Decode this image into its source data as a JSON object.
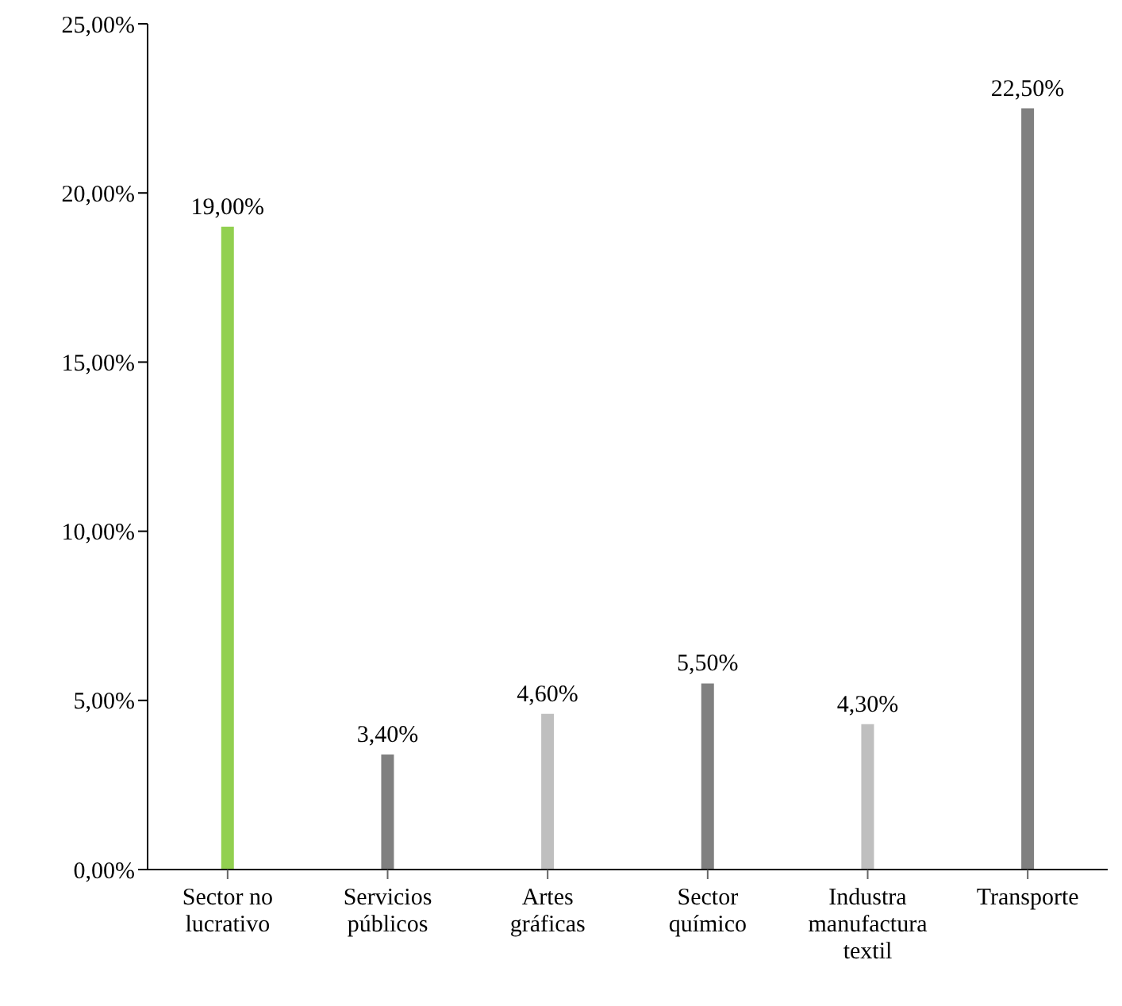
{
  "chart_data": {
    "type": "bar",
    "categories": [
      "Sector no lucrativo",
      "Servicios públicos",
      "Artes gráficas",
      "Sector químico",
      "Industra manufactura textil",
      "Transporte"
    ],
    "values": [
      19,
      3.4,
      4.6,
      5.5,
      4.3,
      22.5
    ],
    "colors": [
      "#92d050",
      "#808080",
      "#bfbfbf",
      "#808080",
      "#bfbfbf",
      "#808080"
    ],
    "value_labels": [
      "19,00%",
      "3,40%",
      "4,60%",
      "5,50%",
      "4,30%",
      "22,50%"
    ],
    "ylim": [
      0,
      25
    ],
    "yticks": [
      {
        "value": 0,
        "label": "0,00%"
      },
      {
        "value": 5,
        "label": "5,00%"
      },
      {
        "value": 10,
        "label": "10,00%"
      },
      {
        "value": 15,
        "label": "15,00%"
      },
      {
        "value": 20,
        "label": "20,00%"
      },
      {
        "value": 25,
        "label": "25,00%"
      }
    ],
    "grid": false,
    "legend": false
  }
}
